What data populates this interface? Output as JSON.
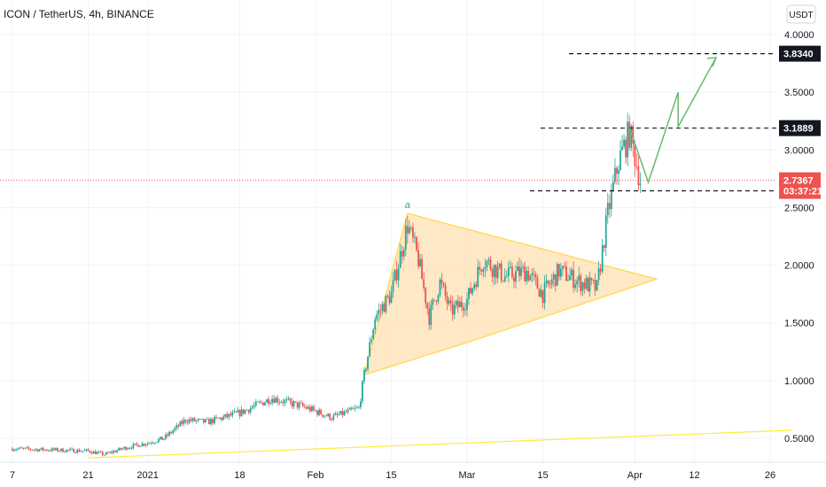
{
  "header": {
    "title": "ICON / TetherUS, 4h, BINANCE",
    "currency_button": "USDT"
  },
  "colors": {
    "up": "#26a69a",
    "down": "#ef5350",
    "triangle_fill": "#ffe0b2",
    "triangle_stroke": "#ffd740",
    "trendline": "#ffeb3b",
    "projection": "#66bb6a",
    "last_price_tag": "#ef5350",
    "level_tag": "#131722",
    "grid": "#f0f3fa"
  },
  "chart_data": {
    "type": "candlestick",
    "symbol": "ICON / TetherUS",
    "timeframe": "4h",
    "exchange": "BINANCE",
    "y_axis": {
      "ticks": [
        "4.0000",
        "3.5000",
        "3.0000",
        "2.5000",
        "2.0000",
        "1.5000",
        "1.0000",
        "0.5000"
      ],
      "range": [
        0.32,
        4.1
      ]
    },
    "x_axis": {
      "ticks": [
        "7",
        "21",
        "2021",
        "18",
        "Feb",
        "15",
        "Mar",
        "15",
        "Apr",
        "12",
        "26"
      ]
    },
    "price_points": [
      {
        "date": "Dec 7",
        "close": 0.41
      },
      {
        "date": "Dec 14",
        "close": 0.4
      },
      {
        "date": "Dec 21",
        "close": 0.39
      },
      {
        "date": "Dec 24",
        "close": 0.36
      },
      {
        "date": "Dec 28",
        "close": 0.42
      },
      {
        "date": "Jan 1",
        "close": 0.46
      },
      {
        "date": "Jan 4",
        "close": 0.5
      },
      {
        "date": "Jan 8",
        "close": 0.66
      },
      {
        "date": "Jan 12",
        "close": 0.64
      },
      {
        "date": "Jan 18",
        "close": 0.72
      },
      {
        "date": "Jan 24",
        "close": 0.85
      },
      {
        "date": "Jan 30",
        "close": 0.77
      },
      {
        "date": "Feb 4",
        "close": 0.68
      },
      {
        "date": "Feb 9",
        "close": 0.76
      },
      {
        "date": "Feb 10",
        "close": 1.05
      },
      {
        "date": "Feb 12",
        "close": 1.55
      },
      {
        "date": "Feb 15",
        "close": 1.75
      },
      {
        "date": "Feb 18",
        "close": 2.35
      },
      {
        "date": "Feb 20",
        "close": 2.05
      },
      {
        "date": "Feb 22",
        "close": 1.55
      },
      {
        "date": "Feb 24",
        "close": 1.85
      },
      {
        "date": "Feb 26",
        "close": 1.6
      },
      {
        "date": "Mar 1",
        "close": 1.7
      },
      {
        "date": "Mar 4",
        "close": 2.05
      },
      {
        "date": "Mar 8",
        "close": 1.9
      },
      {
        "date": "Mar 12",
        "close": 1.95
      },
      {
        "date": "Mar 15",
        "close": 1.75
      },
      {
        "date": "Mar 18",
        "close": 1.95
      },
      {
        "date": "Mar 22",
        "close": 1.85
      },
      {
        "date": "Mar 25",
        "close": 1.8
      },
      {
        "date": "Mar 27",
        "close": 2.45
      },
      {
        "date": "Mar 29",
        "close": 2.9
      },
      {
        "date": "Mar 31",
        "close": 3.15
      },
      {
        "date": "Apr 1",
        "close": 2.95
      },
      {
        "date": "Apr 2",
        "close": 2.74
      }
    ],
    "levels": [
      {
        "label": "3.8340",
        "value": 3.834
      },
      {
        "label": "3.1889",
        "value": 3.1889
      },
      {
        "label": "2.6452",
        "value": 2.6452
      }
    ],
    "last_price": {
      "value": "2.7367",
      "countdown": "03:37:21"
    },
    "triangle": {
      "apex_label": "a",
      "points": [
        {
          "date": "Feb 10",
          "price": 1.05
        },
        {
          "date": "Feb 18",
          "price": 2.45
        },
        {
          "date": "Apr 5",
          "price": 1.88
        },
        {
          "date": "Mar 1",
          "price": 1.33
        }
      ]
    },
    "long_trendline": {
      "from": {
        "date": "Dec 21",
        "price": 0.33
      },
      "to": {
        "date": "Apr 30",
        "price": 0.57
      }
    },
    "projection": [
      {
        "date": "Mar 31",
        "price": 3.19
      },
      {
        "date": "Apr 3",
        "price": 2.72
      },
      {
        "date": "Apr 9",
        "price": 3.5
      },
      {
        "date": "Apr 9",
        "price": 3.2
      },
      {
        "date": "Apr 16",
        "price": 3.8
      }
    ]
  }
}
